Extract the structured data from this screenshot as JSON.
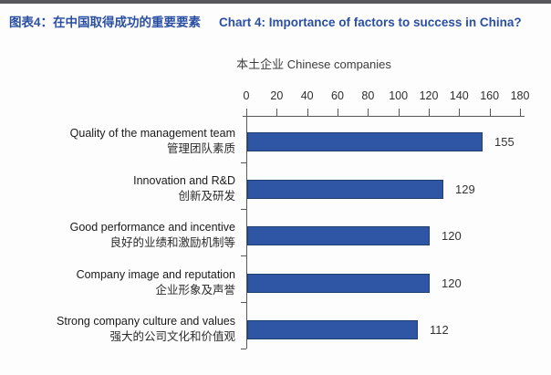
{
  "page": {
    "title_zh": "图表4：在中国取得成功的重要要素",
    "title_en": "Chart 4: Importance of factors to success in China?"
  },
  "chart_data": {
    "type": "bar",
    "orientation": "horizontal",
    "title_zh": "图表4：在中国取得成功的重要要素",
    "title_en": "Chart 4: Importance of factors to success in China?",
    "subtitle": "本土企业 Chinese companies",
    "categories_en": [
      "Quality of the management team",
      "Innovation and R&D",
      "Good performance and incentive",
      "Company image and reputation",
      "Strong company culture and values"
    ],
    "categories_zh": [
      "管理团队素质",
      "创新及研发",
      "良好的业绩和激励机制等",
      "企业形象及声誉",
      "强大的公司文化和价值观"
    ],
    "values": [
      155,
      129,
      120,
      120,
      112
    ],
    "value_labels": [
      "155",
      "129",
      "120",
      "120",
      "112"
    ],
    "xlim": [
      0,
      180
    ],
    "x_ticks": [
      0,
      20,
      40,
      60,
      80,
      100,
      120,
      140,
      160,
      180
    ],
    "grid": false,
    "legend": "none",
    "bar_color": "#2e56a5",
    "bar_border_color": "#20406f",
    "axis_color": "#595959"
  },
  "colors": {
    "title": "#2a4fa2",
    "text": "#3d3d3d",
    "background": "#fdfdfd",
    "top_strip": "#58585a"
  }
}
